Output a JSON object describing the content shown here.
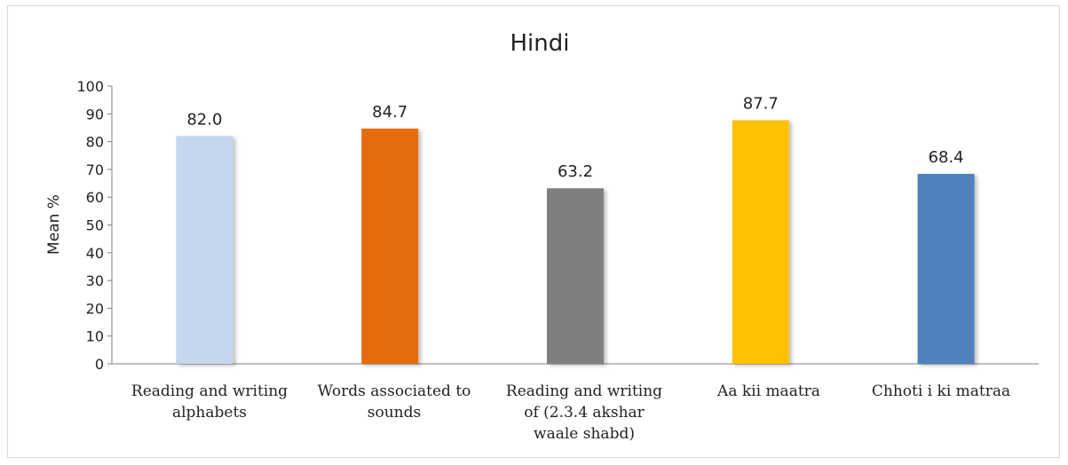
{
  "chart_data": {
    "type": "bar",
    "title": "Hindi",
    "xlabel": "",
    "ylabel": "Mean %",
    "ylim": [
      0,
      100
    ],
    "yticks": [
      0,
      10,
      20,
      30,
      40,
      50,
      60,
      70,
      80,
      90,
      100
    ],
    "grid": false,
    "categories": [
      [
        "Reading and writing",
        "alphabets"
      ],
      [
        "Words associated to",
        "sounds"
      ],
      [
        "Reading and writing",
        "of (2.3.4 akshar",
        "waale shabd)"
      ],
      [
        "Aa kii maatra"
      ],
      [
        "Chhoti i ki matraa"
      ]
    ],
    "values": [
      82.0,
      84.7,
      63.2,
      87.7,
      68.4
    ],
    "data_labels": [
      "82.0",
      "84.7",
      "63.2",
      "87.7",
      "68.4"
    ],
    "colors": [
      "#c5d6ee",
      "#e46c0a",
      "#7f7f7f",
      "#ffc000",
      "#4f81bd"
    ]
  }
}
